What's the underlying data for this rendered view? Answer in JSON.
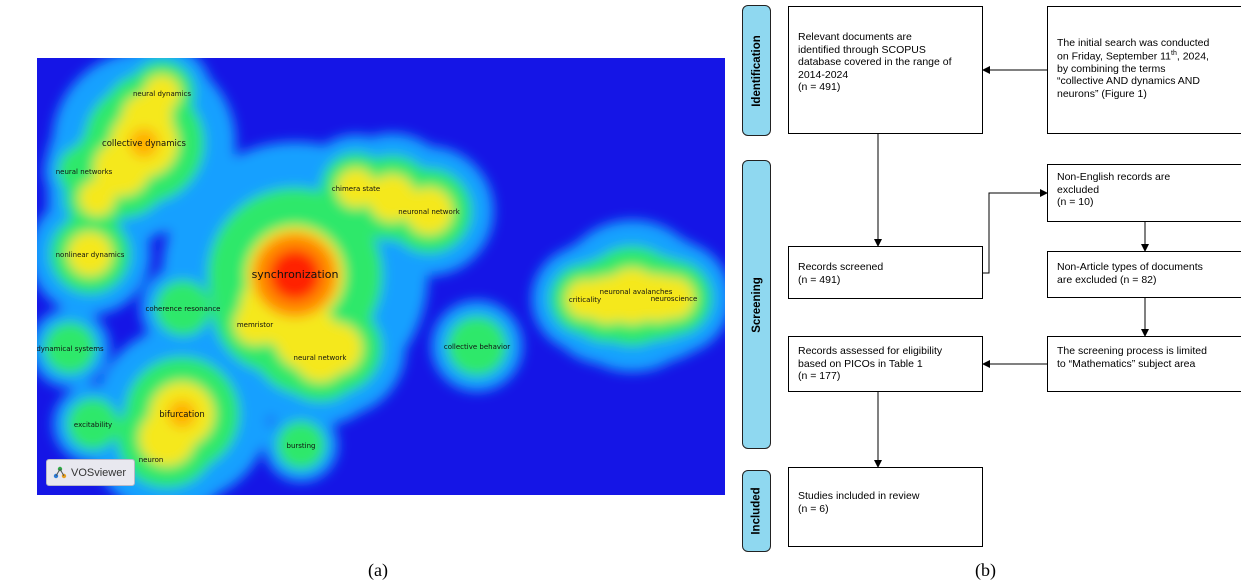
{
  "panel_a": {
    "caption": "(a)",
    "brand": "VOSviewer",
    "colors": {
      "background": "#1515e6",
      "low": "#19a0ff",
      "mid": "#2ee86a",
      "high": "#f5e81a",
      "peak": "#ff2200"
    },
    "terms": [
      {
        "label": "neural dynamics",
        "density": "medium"
      },
      {
        "label": "collective dynamics",
        "density": "high"
      },
      {
        "label": "neural networks",
        "density": "low"
      },
      {
        "label": "chimera state",
        "density": "medium"
      },
      {
        "label": "neuronal network",
        "density": "medium"
      },
      {
        "label": "nonlinear dynamics",
        "density": "medium"
      },
      {
        "label": "synchronization",
        "density": "peak"
      },
      {
        "label": "coherence resonance",
        "density": "low"
      },
      {
        "label": "memristor",
        "density": "medium"
      },
      {
        "label": "neural network",
        "density": "medium"
      },
      {
        "label": "dynamical systems",
        "density": "low"
      },
      {
        "label": "collective behavior",
        "density": "low"
      },
      {
        "label": "neuronal avalanches",
        "density": "medium"
      },
      {
        "label": "criticality",
        "density": "medium"
      },
      {
        "label": "neuroscience",
        "density": "medium"
      },
      {
        "label": "excitability",
        "density": "low"
      },
      {
        "label": "bifurcation",
        "density": "high"
      },
      {
        "label": "neuron",
        "density": "low"
      },
      {
        "label": "bursting",
        "density": "low"
      }
    ]
  },
  "panel_b": {
    "caption": "(b)",
    "stages": [
      "Identification",
      "Screening",
      "Included"
    ],
    "boxes": {
      "relevant": [
        "Relevant documents are",
        "identified through SCOPUS",
        "database covered in the range of",
        "2014-2024",
        "(n = 491)"
      ],
      "initial": {
        "line1": "The initial search was conducted",
        "line2_pre": "on Friday, September 11",
        "line2_sup": "th",
        "line2_post": ", 2024,",
        "rest": [
          "by combining the terms",
          "“collective AND dynamics AND",
          "neurons” (Figure 1)"
        ]
      },
      "screened": [
        "Records screened",
        "(n = 491)"
      ],
      "non_english": [
        "Non-English records are",
        "excluded",
        "(n = 10)"
      ],
      "non_article": [
        "Non-Article types of documents",
        "are excluded (n = 82)"
      ],
      "mathematics": [
        "The screening process is limited",
        "to “Mathematics” subject area"
      ],
      "eligibility": [
        "Records assessed for eligibility",
        "based on PICOs in Table 1",
        "(n = 177)"
      ],
      "included": [
        "Studies included in review",
        "(n = 6)"
      ]
    }
  }
}
